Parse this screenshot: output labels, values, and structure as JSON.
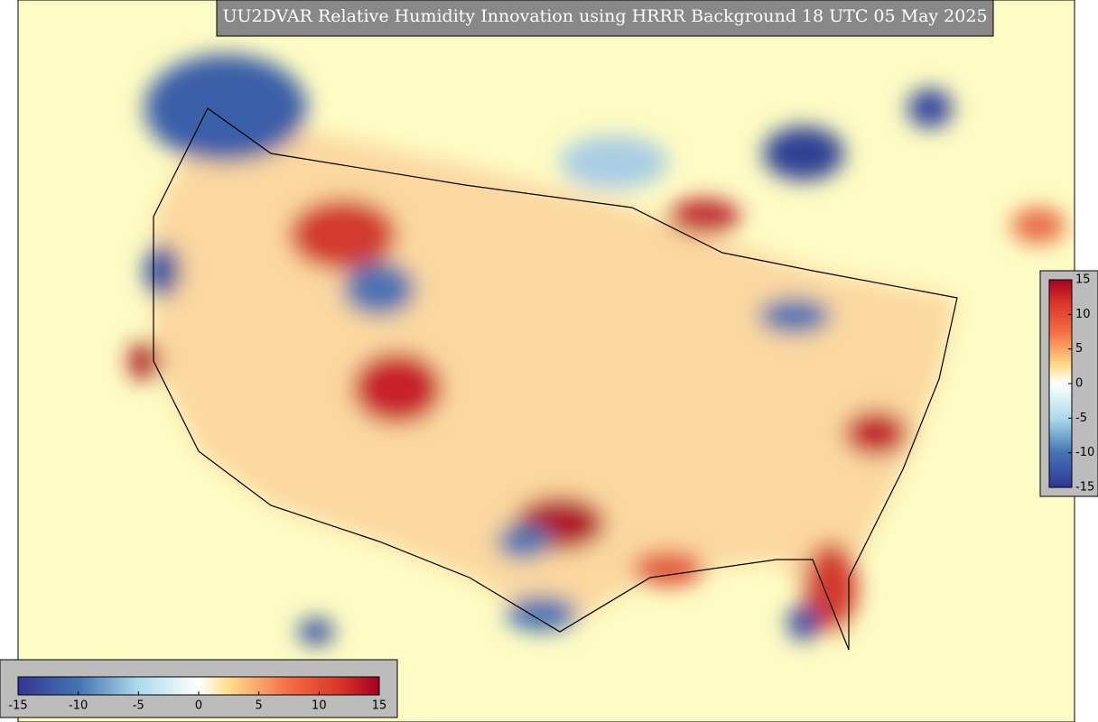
{
  "title": "UU2DVAR Relative Humidity Innovation using HRRR Background 18 UTC 05 May 2025",
  "colorbars": [
    {
      "orientation": "horizontal",
      "lim": [
        -15,
        15
      ],
      "ticks": [
        -15,
        -10,
        -5,
        0,
        5,
        10,
        15
      ]
    },
    {
      "orientation": "vertical",
      "lim": [
        -15,
        15
      ],
      "ticks": [
        15,
        10,
        5,
        0,
        -5,
        -10,
        -15
      ]
    }
  ]
}
